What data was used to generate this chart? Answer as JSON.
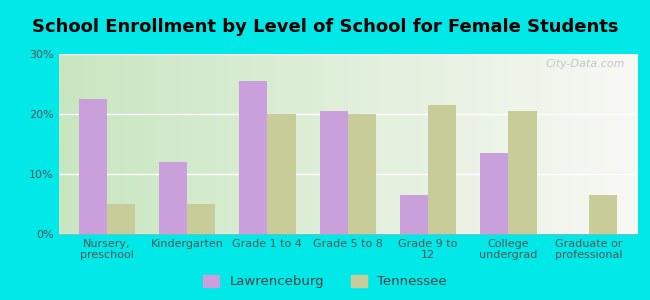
{
  "title": "School Enrollment by Level of School for Female Students",
  "categories": [
    "Nursery,\npreschool",
    "Kindergarten",
    "Grade 1 to 4",
    "Grade 5 to 8",
    "Grade 9 to\n12",
    "College\nundergrad",
    "Graduate or\nprofessional"
  ],
  "lawrenceburg": [
    22.5,
    12.0,
    25.5,
    20.5,
    6.5,
    13.5,
    0.0
  ],
  "tennessee": [
    5.0,
    5.0,
    20.0,
    20.0,
    21.5,
    20.5,
    6.5
  ],
  "bar_color_lawrenceburg": "#c9a0dc",
  "bar_color_tennessee": "#c8cc99",
  "background_color": "#00e8e8",
  "plot_bg_left": "#c8e6c0",
  "plot_bg_right": "#f8f8f4",
  "ylim": [
    0,
    30
  ],
  "yticks": [
    0,
    10,
    20,
    30
  ],
  "yticklabels": [
    "0%",
    "10%",
    "20%",
    "30%"
  ],
  "legend_lawrenceburg": "Lawrenceburg",
  "legend_tennessee": "Tennessee",
  "bar_width": 0.35,
  "title_fontsize": 13,
  "tick_fontsize": 8,
  "legend_fontsize": 9.5
}
